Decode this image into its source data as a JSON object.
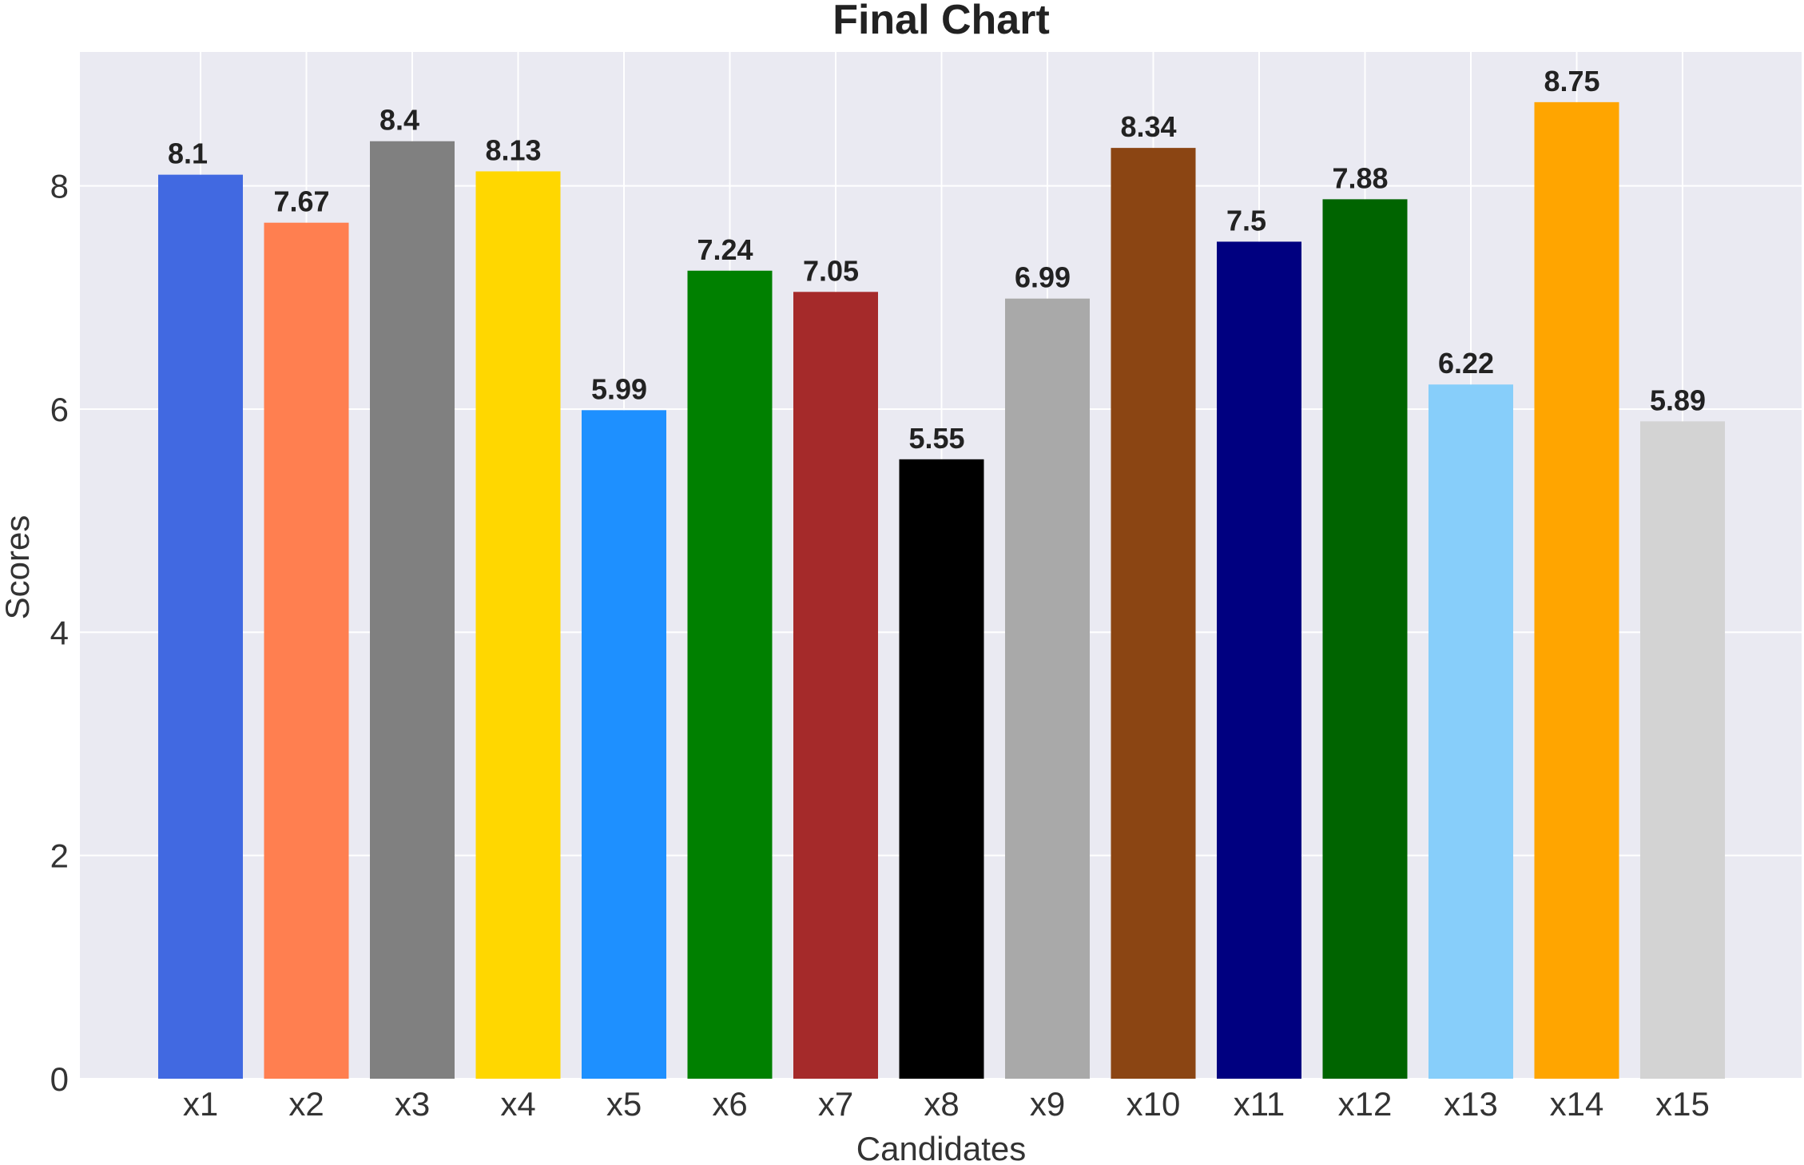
{
  "chart_data": {
    "type": "bar",
    "title": "Final Chart",
    "xlabel": "Candidates",
    "ylabel": "Scores",
    "ylim": [
      0,
      9.2
    ],
    "yticks": [
      0,
      2,
      4,
      6,
      8
    ],
    "grid": true,
    "categories": [
      "x1",
      "x2",
      "x3",
      "x4",
      "x5",
      "x6",
      "x7",
      "x8",
      "x9",
      "x10",
      "x11",
      "x12",
      "x13",
      "x14",
      "x15"
    ],
    "values": [
      8.1,
      7.67,
      8.4,
      8.13,
      5.99,
      7.24,
      7.05,
      5.55,
      6.99,
      8.34,
      7.5,
      7.88,
      6.22,
      8.75,
      5.89
    ],
    "value_labels": [
      "8.1",
      "7.67",
      "8.4",
      "8.13",
      "5.99",
      "7.24",
      "7.05",
      "5.55",
      "6.99",
      "8.34",
      "7.5",
      "7.88",
      "6.22",
      "8.75",
      "5.89"
    ],
    "colors": [
      "#4169E1",
      "#FF7F50",
      "#808080",
      "#FFD700",
      "#1E90FF",
      "#008000",
      "#A52A2A",
      "#000000",
      "#A9A9A9",
      "#8B4513",
      "#000080",
      "#006400",
      "#87CEFA",
      "#FFA500",
      "#D3D3D3"
    ],
    "background": "#EAEAF2"
  }
}
